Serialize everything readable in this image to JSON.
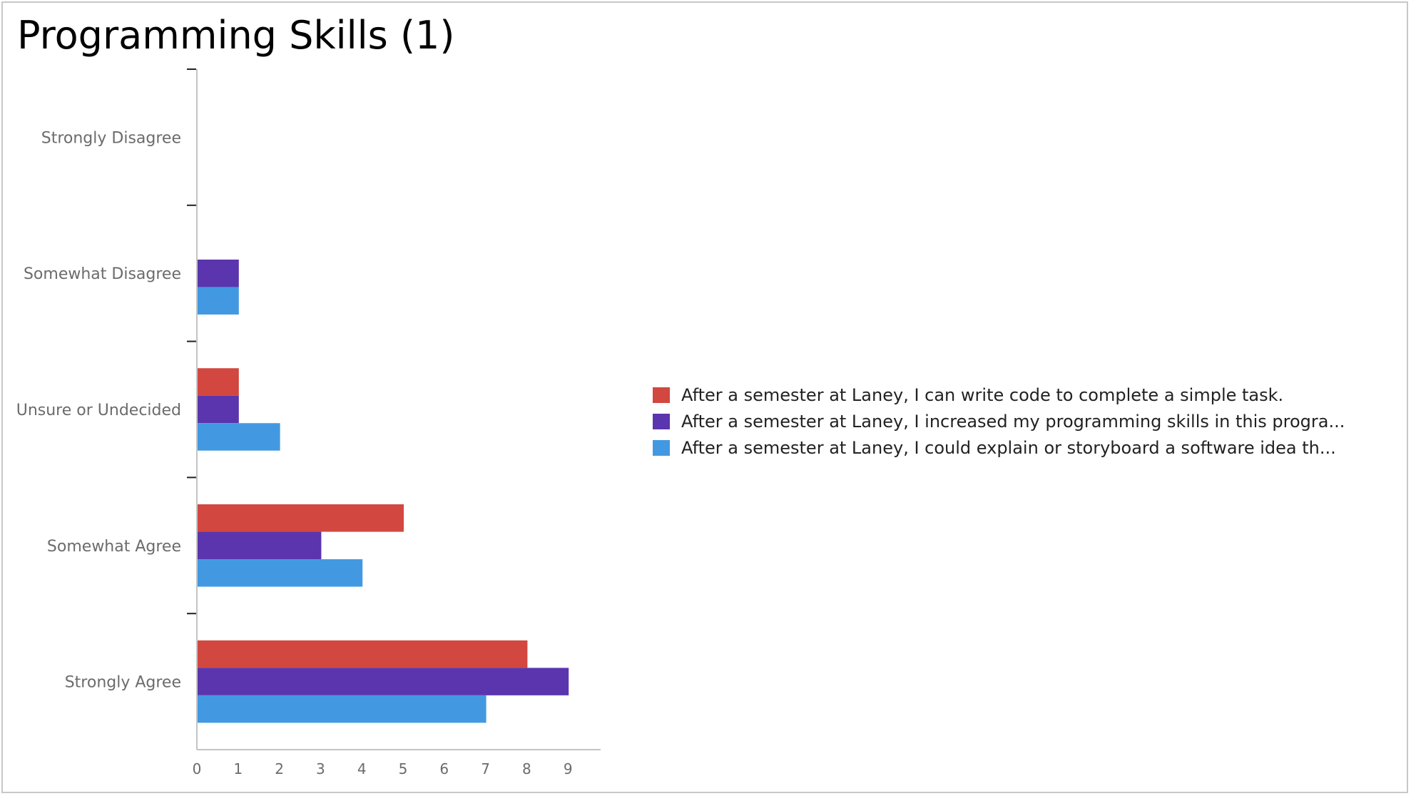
{
  "title": "Programming Skills (1)",
  "chart_data": {
    "type": "bar",
    "orientation": "horizontal",
    "title": "Programming Skills (1)",
    "categories": [
      "Strongly Disagree",
      "Somewhat Disagree",
      "Unsure or Undecided",
      "Somewhat Agree",
      "Strongly Agree"
    ],
    "series": [
      {
        "name": "After a semester at Laney, I can write code to complete a simple task.",
        "color": "#d2473f",
        "values": [
          0,
          0,
          1,
          5,
          8
        ]
      },
      {
        "name": "After a semester at Laney, I increased my programming skills in this progra...",
        "color": "#5a35ad",
        "values": [
          0,
          1,
          1,
          3,
          9
        ]
      },
      {
        "name": "After a semester at Laney, I could explain or storyboard a software idea th...",
        "color": "#4299e1",
        "values": [
          0,
          1,
          2,
          4,
          7
        ]
      }
    ],
    "x_ticks": [
      0,
      1,
      2,
      3,
      4,
      5,
      6,
      7,
      8,
      9
    ],
    "xlim": [
      0,
      10
    ],
    "grid": false,
    "legend_position": "right"
  }
}
